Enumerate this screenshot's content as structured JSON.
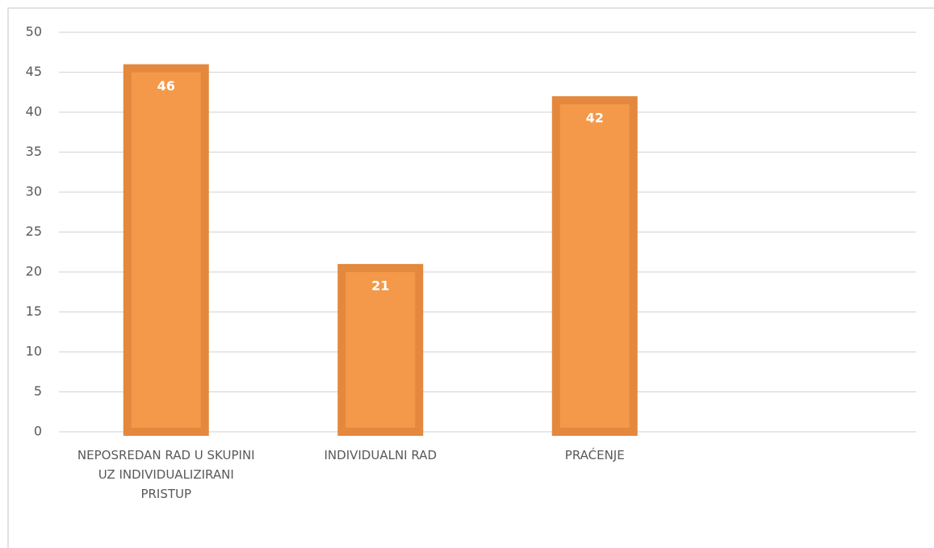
{
  "chart_data": {
    "type": "bar",
    "categories": [
      "NEPOSREDAN RAD U SKUPINI UZ INDIVIDUALIZIRANI PRISTUP",
      "INDIVIDUALNI RAD",
      "PRAĆENJE",
      null
    ],
    "values": [
      46,
      21,
      42,
      null
    ],
    "color": "#f4994a",
    "edge_color": "#e3883c",
    "ylim": [
      0,
      50
    ],
    "yticks": [
      0,
      5,
      10,
      15,
      20,
      25,
      30,
      35,
      40,
      45,
      50
    ],
    "grid": true
  }
}
